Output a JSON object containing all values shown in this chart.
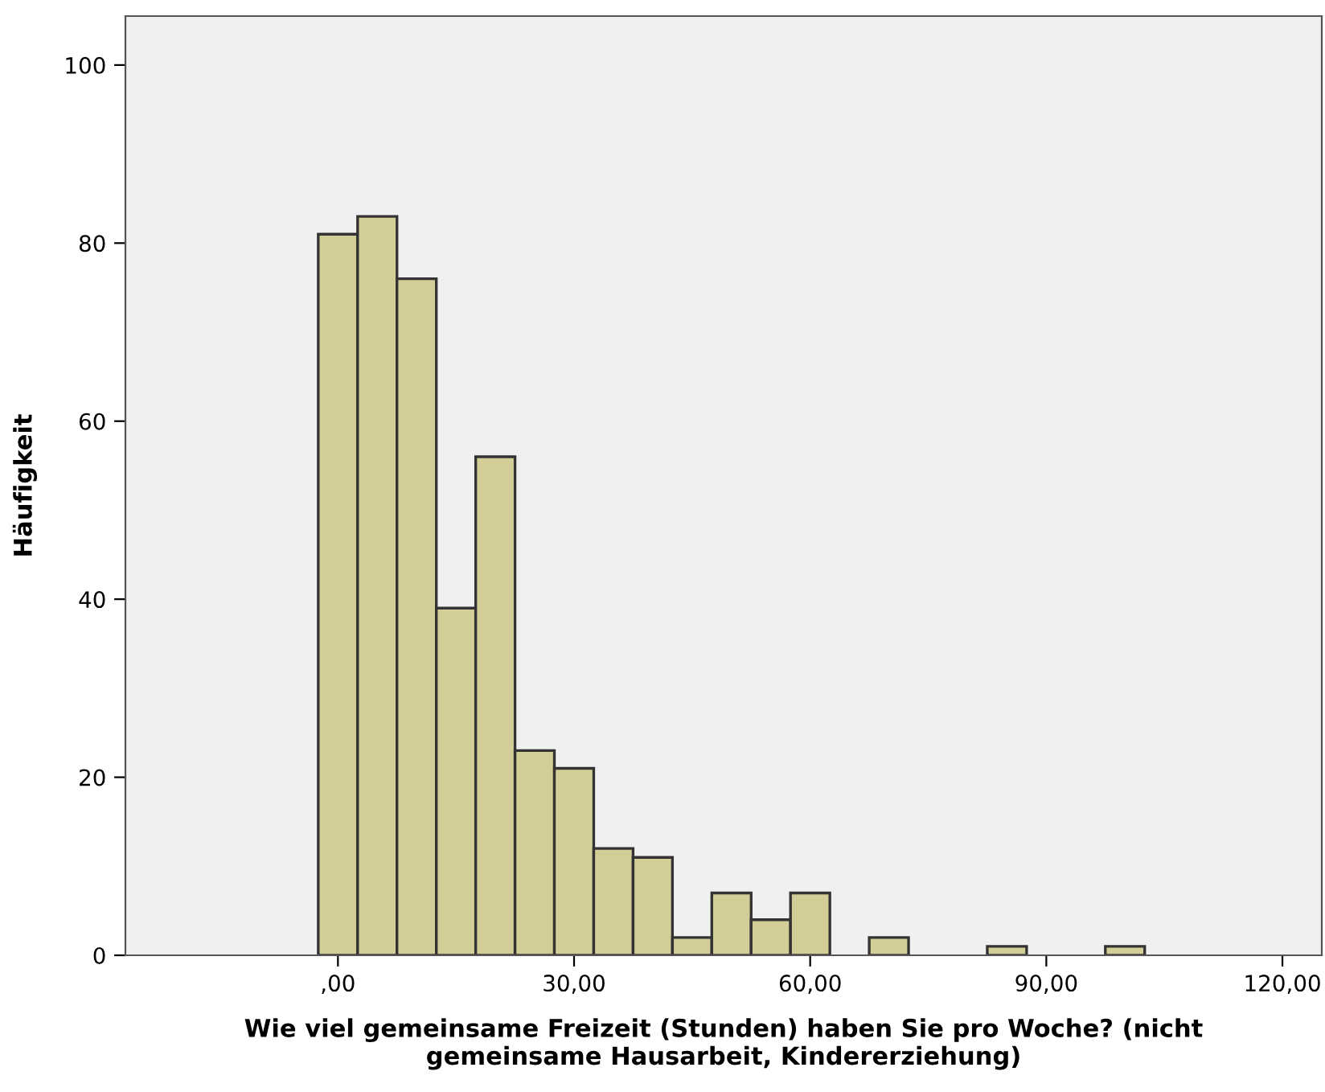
{
  "chart_data": {
    "type": "histogram",
    "xlabel": "Wie viel gemeinsame Freizeit (Stunden) haben Sie pro Woche? (nicht\ngemeinsame Hausarbeit, Kindererziehung)",
    "ylabel": "Häufigkeit",
    "bins": [
      -2.5,
      2.5,
      7.5,
      12.5,
      17.5,
      22.5,
      27.5,
      32.5,
      37.5,
      42.5,
      47.5,
      52.5,
      57.5,
      62.5,
      67.5,
      72.5,
      77.5,
      82.5,
      87.5,
      92.5,
      97.5,
      102.5
    ],
    "values": [
      81,
      83,
      76,
      39,
      56,
      23,
      21,
      12,
      11,
      2,
      7,
      4,
      7,
      0,
      2,
      0,
      0,
      1,
      0,
      0,
      1
    ],
    "color": "#d3ce97",
    "xlim": [
      -27,
      125
    ],
    "xticks": [
      {
        "value": 0,
        "label": ",00"
      },
      {
        "value": 30,
        "label": "30,00"
      },
      {
        "value": 60,
        "label": "60,00"
      },
      {
        "value": 90,
        "label": "90,00"
      },
      {
        "value": 120,
        "label": "120,00"
      }
    ],
    "ylim": [
      0,
      105.5
    ],
    "yticks": [
      0,
      20,
      40,
      60,
      80,
      100
    ],
    "grid": false
  }
}
